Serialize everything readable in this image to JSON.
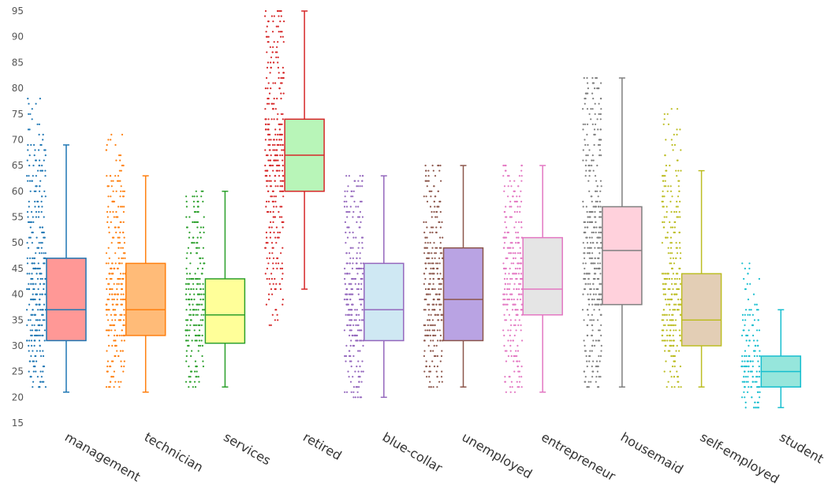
{
  "chart_data": {
    "type": "box",
    "title": "",
    "xlabel": "",
    "ylabel": "",
    "ylim": [
      15,
      95
    ],
    "yticks": [
      15,
      20,
      25,
      30,
      35,
      40,
      45,
      50,
      55,
      60,
      65,
      70,
      75,
      80,
      85,
      90,
      95
    ],
    "grid": false,
    "series": [
      {
        "name": "management",
        "min": 21,
        "q1": 31,
        "median": 37,
        "q3": 47,
        "max": 69,
        "points_range": [
          22,
          78
        ],
        "line_color": "#1f77b4",
        "fill_color": "#ff9896"
      },
      {
        "name": "technician",
        "min": 21,
        "q1": 32,
        "median": 37,
        "q3": 46,
        "max": 63,
        "points_range": [
          22,
          71
        ],
        "line_color": "#ff7f0e",
        "fill_color": "#ffbb78"
      },
      {
        "name": "services",
        "min": 22,
        "q1": 30.5,
        "median": 36,
        "q3": 43,
        "max": 60,
        "points_range": [
          22,
          60
        ],
        "line_color": "#2ca02c",
        "fill_color": "#ffff99"
      },
      {
        "name": "retired",
        "min": 41,
        "q1": 60,
        "median": 67,
        "q3": 74,
        "max": 95,
        "points_range": [
          34,
          95
        ],
        "line_color": "#d62728",
        "fill_color": "#b8f5b8"
      },
      {
        "name": "blue-collar",
        "min": 20,
        "q1": 31,
        "median": 37,
        "q3": 46,
        "max": 63,
        "points_range": [
          20,
          63
        ],
        "line_color": "#9467bd",
        "fill_color": "#cfe8f3"
      },
      {
        "name": "unemployed",
        "min": 22,
        "q1": 31,
        "median": 39,
        "q3": 49,
        "max": 65,
        "points_range": [
          22,
          65
        ],
        "line_color": "#8c564b",
        "fill_color": "#b9a3e3"
      },
      {
        "name": "entrepreneur",
        "min": 21,
        "q1": 36,
        "median": 41,
        "q3": 51,
        "max": 65,
        "points_range": [
          21,
          65
        ],
        "line_color": "#e377c2",
        "fill_color": "#e5e5e5"
      },
      {
        "name": "housemaid",
        "min": 22,
        "q1": 38,
        "median": 48.5,
        "q3": 57,
        "max": 82,
        "points_range": [
          22,
          82
        ],
        "line_color": "#7f7f7f",
        "fill_color": "#ffd1dc"
      },
      {
        "name": "self-employed",
        "min": 22,
        "q1": 30,
        "median": 35,
        "q3": 44,
        "max": 64,
        "points_range": [
          22,
          76
        ],
        "line_color": "#bcbd22",
        "fill_color": "#e3ceb5"
      },
      {
        "name": "student",
        "min": 18,
        "q1": 22,
        "median": 25,
        "q3": 28,
        "max": 37,
        "points_range": [
          18,
          46
        ],
        "line_color": "#17becf",
        "fill_color": "#96e6dc"
      }
    ]
  }
}
